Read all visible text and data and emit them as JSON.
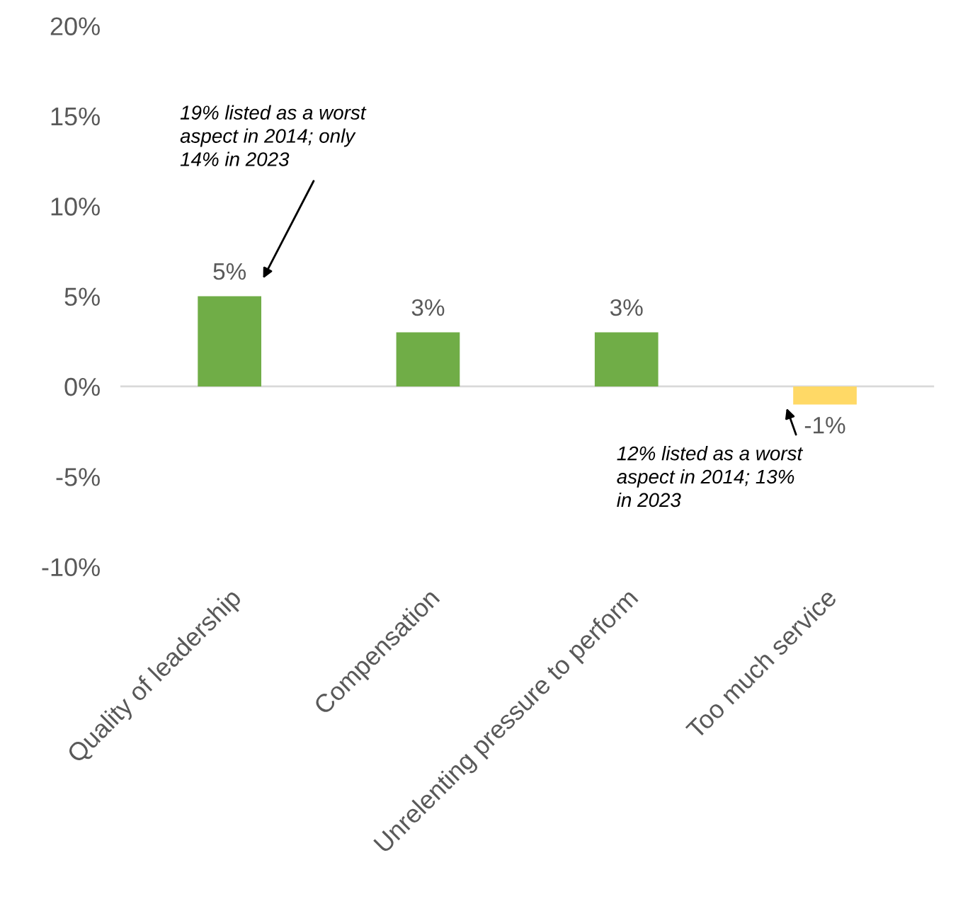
{
  "chart_data": {
    "type": "bar",
    "categories": [
      "Quality of leadership",
      "Compensation",
      "Unrelenting pressure to perform",
      "Too much service"
    ],
    "values": [
      5,
      3,
      3,
      -1
    ],
    "colors": [
      "#70ad47",
      "#70ad47",
      "#70ad47",
      "#ffd966"
    ],
    "value_labels": [
      "5%",
      "3%",
      "3%",
      "-1%"
    ],
    "ylim": [
      -10,
      20
    ],
    "yticks": [
      {
        "value": -10,
        "label": "-10%"
      },
      {
        "value": -5,
        "label": "-5%"
      },
      {
        "value": 0,
        "label": "0%"
      },
      {
        "value": 5,
        "label": "5%"
      },
      {
        "value": 10,
        "label": "10%"
      },
      {
        "value": 15,
        "label": "15%"
      },
      {
        "value": 20,
        "label": "20%"
      }
    ],
    "annotations": [
      "19% listed as a worst\naspect in 2014; only\n14% in 2023",
      {
        "text": "12% listed as a worst\naspect in 2014; 13%\nin 2023",
        "x": "Too much service",
        "y": -1
      }
    ]
  }
}
